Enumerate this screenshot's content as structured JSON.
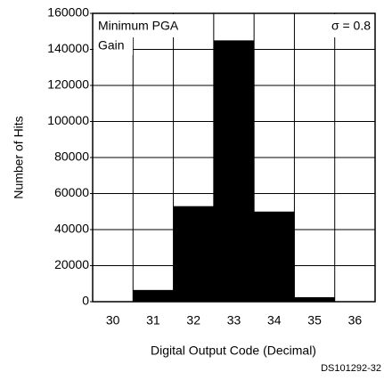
{
  "chart_data": {
    "type": "bar",
    "categories": [
      30,
      31,
      32,
      33,
      34,
      35,
      36
    ],
    "values": [
      0,
      6500,
      53000,
      145000,
      50000,
      2500,
      0
    ],
    "color": "#000000",
    "ylim": [
      0,
      160000
    ],
    "yticks": [
      0,
      20000,
      40000,
      60000,
      80000,
      100000,
      120000,
      140000,
      160000
    ],
    "grid": true,
    "ylabel": "Number of Hits",
    "xlabel": "Digital Output Code (Decimal)",
    "annotations": [
      "Minimum PGA",
      "Gain"
    ],
    "annotation_right": "σ = 0.8",
    "footer": "DS101292-32"
  }
}
